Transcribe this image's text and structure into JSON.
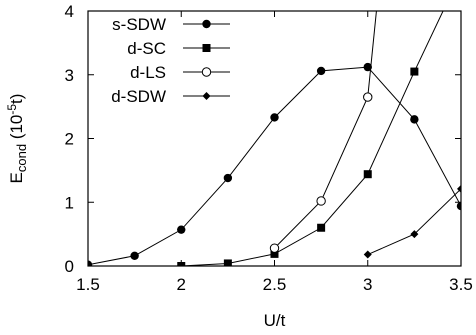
{
  "chart_data": {
    "type": "line",
    "xlabel": "U/t",
    "ylabel": {
      "base": "E",
      "sub": "cond",
      "unit_prefix": " (10",
      "unit_sup": "-5",
      "unit_suffix": "t)"
    },
    "xlim": [
      1.5,
      3.5
    ],
    "ylim": [
      0,
      4
    ],
    "xticks": [
      1.5,
      2,
      2.5,
      3,
      3.5
    ],
    "xtick_labels": [
      "1.5",
      "2",
      "2.5",
      "3",
      "3.5"
    ],
    "yticks": [
      0,
      1,
      2,
      3,
      4
    ],
    "ytick_labels": [
      "0",
      "1",
      "2",
      "3",
      "4"
    ],
    "grid": false,
    "legend_position": "top-left",
    "series": [
      {
        "name": "s-SDW",
        "marker": "filled-circle",
        "points": [
          [
            1.5,
            0.02
          ],
          [
            1.75,
            0.16
          ],
          [
            2.0,
            0.57
          ],
          [
            2.25,
            1.38
          ],
          [
            2.5,
            2.33
          ],
          [
            2.75,
            3.06
          ],
          [
            3.0,
            3.12
          ],
          [
            3.25,
            2.3
          ],
          [
            3.5,
            0.94
          ]
        ]
      },
      {
        "name": "d-SC",
        "marker": "filled-square",
        "points": [
          [
            2.0,
            0.0
          ],
          [
            2.25,
            0.04
          ],
          [
            2.5,
            0.19
          ],
          [
            2.75,
            0.6
          ],
          [
            3.0,
            1.44
          ],
          [
            3.25,
            3.05
          ],
          [
            3.42,
            4.1
          ]
        ]
      },
      {
        "name": "d-LS",
        "marker": "open-circle",
        "points": [
          [
            2.5,
            0.28
          ],
          [
            2.75,
            1.02
          ],
          [
            3.0,
            2.65
          ],
          [
            3.05,
            4.1
          ]
        ]
      },
      {
        "name": "d-SDW",
        "marker": "filled-diamond",
        "points": [
          [
            3.0,
            0.18
          ],
          [
            3.25,
            0.5
          ],
          [
            3.5,
            1.21
          ]
        ]
      }
    ]
  }
}
